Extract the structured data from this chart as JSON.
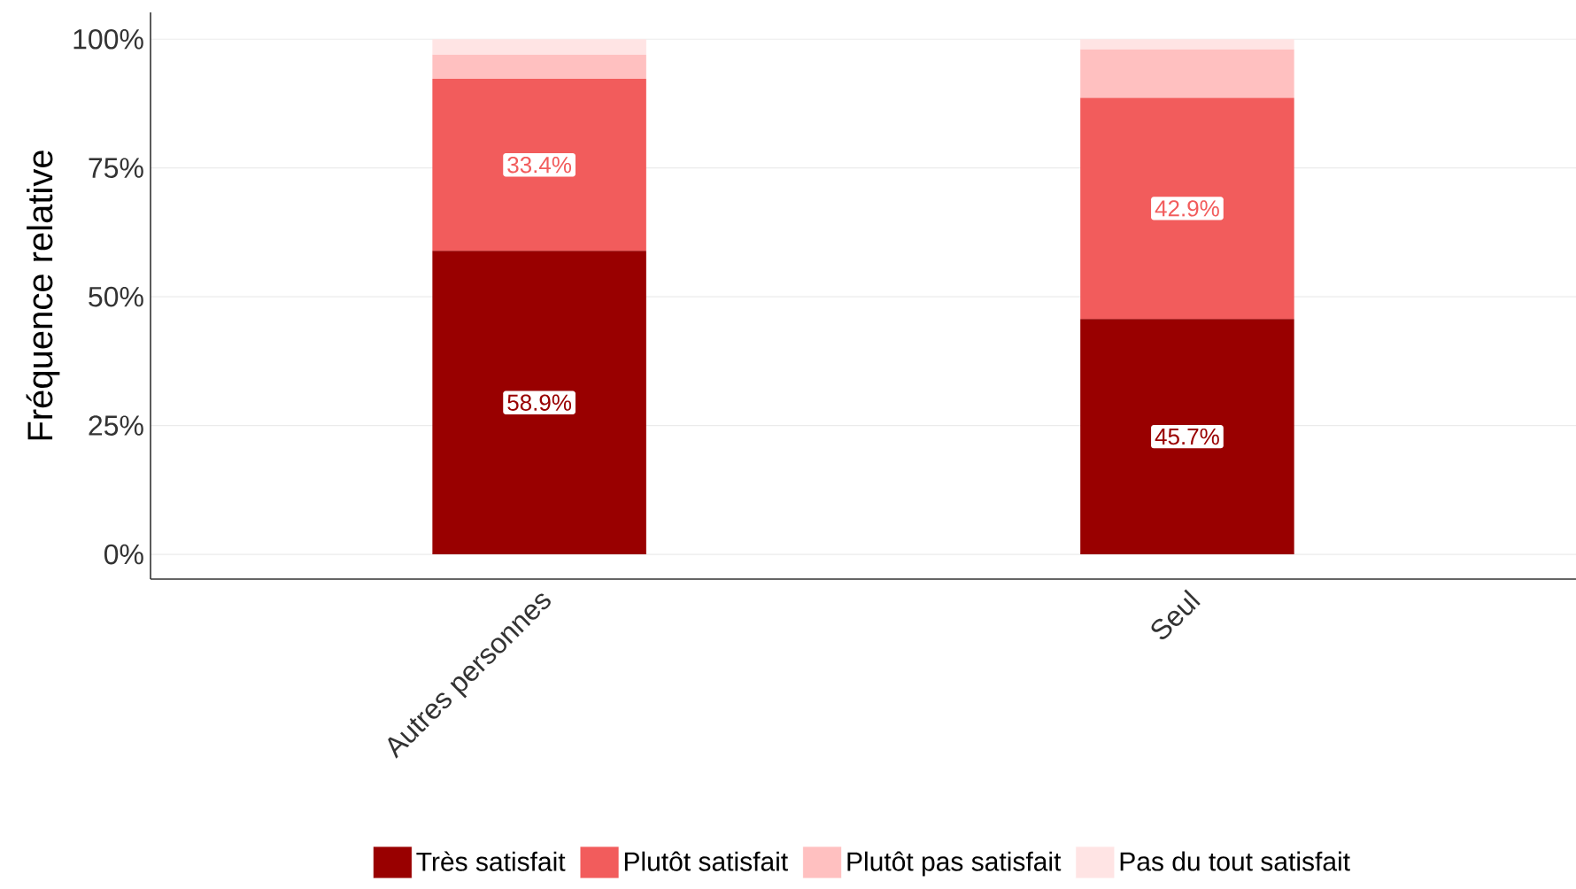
{
  "chart_data": {
    "type": "bar",
    "stacked": true,
    "ylabel": "Fréquence relative",
    "categories": [
      "Autres personnes",
      "Seul"
    ],
    "series": [
      {
        "name": "Très satisfait",
        "color": "#990000",
        "values": [
          58.9,
          45.7
        ],
        "value_labels": [
          "58.9%",
          "45.7%"
        ]
      },
      {
        "name": "Plutôt satisfait",
        "color": "#f25c5c",
        "values": [
          33.4,
          42.9
        ],
        "value_labels": [
          "33.4%",
          "42.9%"
        ]
      },
      {
        "name": "Plutôt pas satisfait",
        "color": "#ffc0c0",
        "values": [
          4.7,
          9.4
        ]
      },
      {
        "name": "Pas du tout satisfait",
        "color": "#ffe4e4",
        "values": [
          3.0,
          2.0
        ]
      }
    ],
    "ylim": [
      -4.8,
      105.2
    ],
    "yticks": [
      {
        "value": 0,
        "label": "0%"
      },
      {
        "value": 25,
        "label": "25%"
      },
      {
        "value": 50,
        "label": "50%"
      },
      {
        "value": 75,
        "label": "75%"
      },
      {
        "value": 100,
        "label": "100%"
      }
    ],
    "grid": "y",
    "legend": "bottom"
  }
}
